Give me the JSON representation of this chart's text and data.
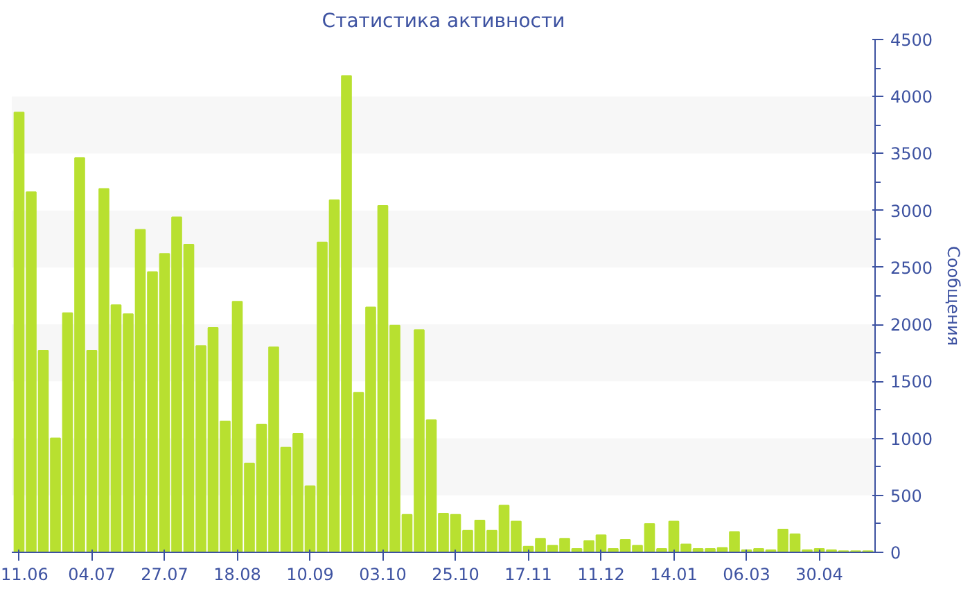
{
  "chart_data": {
    "type": "bar",
    "title": "Статистика активности",
    "ylabel": "Сообщения",
    "categories": [
      "11.06",
      null,
      null,
      null,
      null,
      null,
      "04.07",
      null,
      null,
      null,
      null,
      null,
      "27.07",
      null,
      null,
      null,
      null,
      null,
      "18.08",
      null,
      null,
      null,
      null,
      null,
      "10.09",
      null,
      null,
      null,
      null,
      null,
      "03.10",
      null,
      null,
      null,
      null,
      null,
      "25.10",
      null,
      null,
      null,
      null,
      null,
      "17.11",
      null,
      null,
      null,
      null,
      null,
      "11.12",
      null,
      null,
      null,
      null,
      null,
      "14.01",
      null,
      null,
      null,
      null,
      null,
      "06.03",
      null,
      null,
      null,
      null,
      null,
      "30.04",
      null,
      null,
      null,
      null
    ],
    "values": [
      3860,
      3160,
      1770,
      1000,
      2100,
      3460,
      1770,
      3190,
      2170,
      2090,
      2830,
      2460,
      2620,
      2940,
      2700,
      1810,
      1970,
      1150,
      2200,
      780,
      1120,
      1800,
      920,
      1040,
      580,
      2720,
      3090,
      4180,
      1400,
      2150,
      3040,
      1990,
      330,
      1950,
      1160,
      340,
      330,
      190,
      280,
      190,
      410,
      270,
      50,
      120,
      60,
      120,
      30,
      100,
      150,
      30,
      110,
      60,
      250,
      30,
      270,
      70,
      30,
      30,
      40,
      180,
      20,
      30,
      20,
      200,
      160,
      20,
      30,
      20,
      10,
      10,
      10
    ],
    "color": "#b8e030",
    "ylim": [
      0,
      4500
    ],
    "yticks": [
      0,
      500,
      1000,
      1500,
      2000,
      2500,
      3000,
      3500,
      4000,
      4500
    ],
    "bands": [
      {
        "axis": "y",
        "from": 500,
        "to": 1000,
        "color": "#f7f7f7"
      },
      {
        "axis": "y",
        "from": 1500,
        "to": 2000,
        "color": "#f7f7f7"
      },
      {
        "axis": "y",
        "from": 2500,
        "to": 3000,
        "color": "#f7f7f7"
      },
      {
        "axis": "y",
        "from": 3500,
        "to": 4000,
        "color": "#f7f7f7"
      }
    ]
  }
}
